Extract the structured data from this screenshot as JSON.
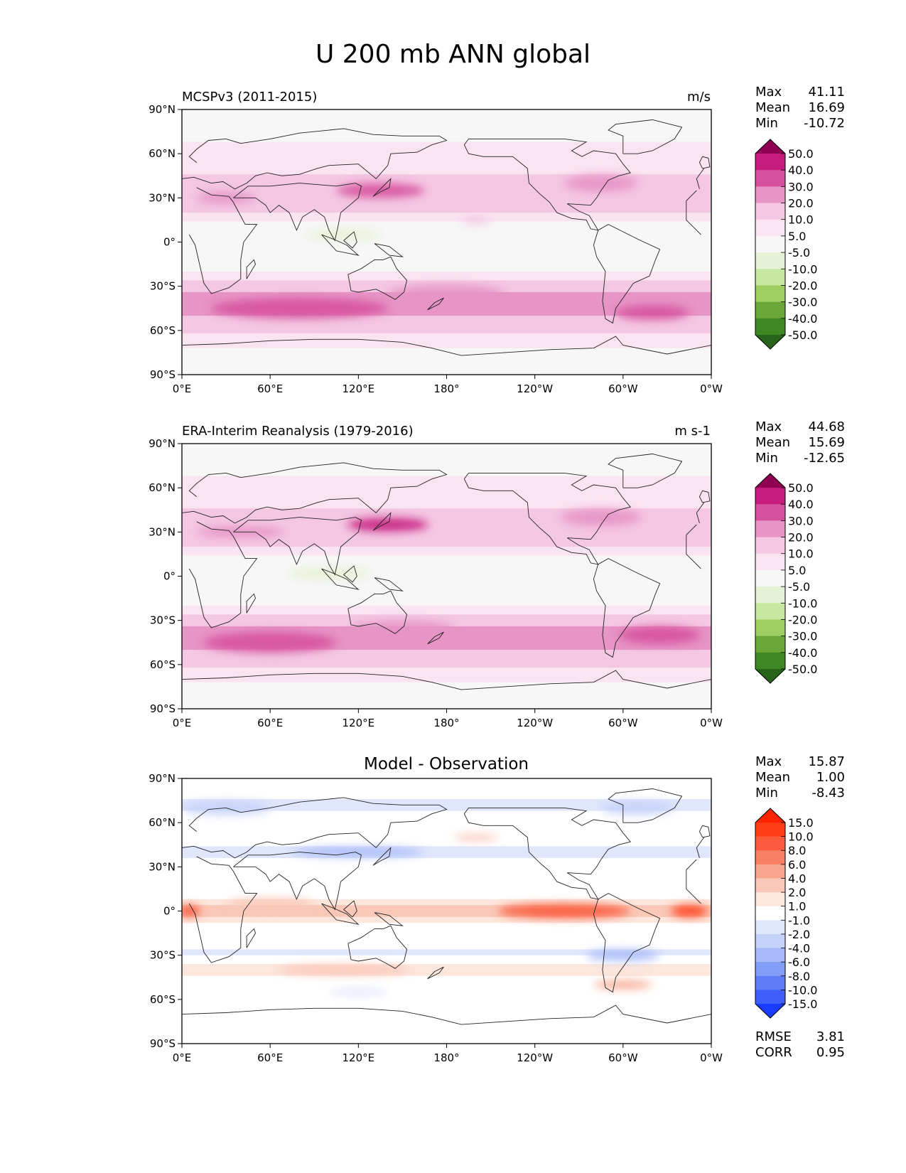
{
  "title": "U 200 mb ANN global",
  "chart_data": [
    {
      "type": "heatmap",
      "panel": "test",
      "title": "MCSPv3 (2011-2015)",
      "units": "m/s",
      "stats": {
        "max_label": "Max",
        "max": "41.11",
        "mean_label": "Mean",
        "mean": "16.69",
        "min_label": "Min",
        "min": "-10.72"
      },
      "colorbar": {
        "levels": [
          "50.0",
          "40.0",
          "30.0",
          "20.0",
          "10.0",
          "5.0",
          "-5.0",
          "-10.0",
          "-20.0",
          "-30.0",
          "-40.0",
          "-50.0"
        ],
        "colors": [
          "#8e0152",
          "#c51b7d",
          "#d6519d",
          "#e794c6",
          "#f4c7e2",
          "#fbe4f1",
          "#f7f7f7",
          "#e6f2d5",
          "#c7e8a0",
          "#9fcf63",
          "#6ba738",
          "#3f8722",
          "#276419"
        ]
      },
      "xticks": [
        "0°E",
        "60°E",
        "120°E",
        "180°",
        "120°W",
        "60°W",
        "0°W"
      ],
      "yticks": [
        "90°N",
        "60°N",
        "30°N",
        "0°",
        "30°S",
        "60°S",
        "90°S"
      ],
      "jets": [
        {
          "lat": 35,
          "lon": 135,
          "w": 60,
          "h": 10,
          "value": 35
        },
        {
          "lat": 30,
          "lon": 30,
          "w": 40,
          "h": 8,
          "value": 25
        },
        {
          "lat": 40,
          "lon": 285,
          "w": 50,
          "h": 12,
          "value": 22
        },
        {
          "lat": -45,
          "lon": 80,
          "w": 120,
          "h": 14,
          "value": 30
        },
        {
          "lat": -35,
          "lon": 180,
          "w": 80,
          "h": 12,
          "value": 28
        },
        {
          "lat": -48,
          "lon": 320,
          "w": 50,
          "h": 10,
          "value": 30
        },
        {
          "lat": 5,
          "lon": 110,
          "w": 50,
          "h": 8,
          "value": -7
        },
        {
          "lat": 15,
          "lon": 200,
          "w": 20,
          "h": 6,
          "value": 18
        }
      ]
    },
    {
      "type": "heatmap",
      "panel": "reference",
      "title": "ERA-Interim Reanalysis (1979-2016)",
      "units": "m s-1",
      "stats": {
        "max_label": "Max",
        "max": "44.68",
        "mean_label": "Mean",
        "mean": "15.69",
        "min_label": "Min",
        "min": "-12.65"
      },
      "colorbar": {
        "levels": [
          "50.0",
          "40.0",
          "30.0",
          "20.0",
          "10.0",
          "5.0",
          "-5.0",
          "-10.0",
          "-20.0",
          "-30.0",
          "-40.0",
          "-50.0"
        ],
        "colors": [
          "#8e0152",
          "#c51b7d",
          "#d6519d",
          "#e794c6",
          "#f4c7e2",
          "#fbe4f1",
          "#f7f7f7",
          "#e6f2d5",
          "#c7e8a0",
          "#9fcf63",
          "#6ba738",
          "#3f8722",
          "#276419"
        ]
      },
      "xticks": [
        "0°E",
        "60°E",
        "120°E",
        "180°",
        "120°W",
        "60°W",
        "0°W"
      ],
      "yticks": [
        "90°N",
        "60°N",
        "30°N",
        "0°",
        "30°S",
        "60°S",
        "90°S"
      ],
      "jets": [
        {
          "lat": 35,
          "lon": 140,
          "w": 55,
          "h": 9,
          "value": 40
        },
        {
          "lat": 30,
          "lon": 40,
          "w": 60,
          "h": 8,
          "value": 28
        },
        {
          "lat": 40,
          "lon": 285,
          "w": 55,
          "h": 12,
          "value": 22
        },
        {
          "lat": -45,
          "lon": 60,
          "w": 90,
          "h": 14,
          "value": 30
        },
        {
          "lat": -35,
          "lon": 150,
          "w": 70,
          "h": 10,
          "value": 28
        },
        {
          "lat": -40,
          "lon": 325,
          "w": 55,
          "h": 12,
          "value": 30
        },
        {
          "lat": 2,
          "lon": 100,
          "w": 55,
          "h": 9,
          "value": -10
        },
        {
          "lat": 2,
          "lon": 10,
          "w": 15,
          "h": 5,
          "value": -5
        }
      ]
    },
    {
      "type": "heatmap",
      "panel": "difference",
      "title": "Model - Observation",
      "units": "",
      "stats": {
        "max_label": "Max",
        "max": "15.87",
        "mean_label": "Mean",
        "mean": "1.00",
        "min_label": "Min",
        "min": "-8.43"
      },
      "metrics": {
        "rmse_label": "RMSE",
        "rmse": "3.81",
        "corr_label": "CORR",
        "corr": "0.95"
      },
      "colorbar": {
        "levels": [
          "15.0",
          "10.0",
          "8.0",
          "6.0",
          "4.0",
          "2.0",
          "1.0",
          "-1.0",
          "-2.0",
          "-4.0",
          "-6.0",
          "-8.0",
          "-10.0",
          "-15.0"
        ],
        "colors": [
          "#ff2200",
          "#ff3c14",
          "#fb5a3c",
          "#f88064",
          "#f7a68c",
          "#fac8b8",
          "#fde6dc",
          "#ffffff",
          "#e0e7fc",
          "#c5d2fa",
          "#a7b9f8",
          "#839ef6",
          "#5f7ef5",
          "#3d5ef8",
          "#1a3cff"
        ]
      },
      "xticks": [
        "0°E",
        "60°E",
        "120°E",
        "180°",
        "120°W",
        "60°W",
        "0°W"
      ],
      "yticks": [
        "90°N",
        "60°N",
        "30°N",
        "0°",
        "30°S",
        "60°S",
        "90°S"
      ],
      "jets": [
        {
          "lat": 0,
          "lon": 260,
          "w": 90,
          "h": 10,
          "value": 9
        },
        {
          "lat": 0,
          "lon": 345,
          "w": 25,
          "h": 8,
          "value": 10
        },
        {
          "lat": 0,
          "lon": 5,
          "w": 15,
          "h": 8,
          "value": 8
        },
        {
          "lat": 5,
          "lon": 60,
          "w": 60,
          "h": 8,
          "value": 3
        },
        {
          "lat": 40,
          "lon": 120,
          "w": 90,
          "h": 7,
          "value": -5
        },
        {
          "lat": 70,
          "lon": 30,
          "w": 60,
          "h": 10,
          "value": -3
        },
        {
          "lat": 70,
          "lon": 310,
          "w": 50,
          "h": 10,
          "value": -4
        },
        {
          "lat": -30,
          "lon": 300,
          "w": 50,
          "h": 8,
          "value": -6
        },
        {
          "lat": -40,
          "lon": 110,
          "w": 90,
          "h": 8,
          "value": 3
        },
        {
          "lat": -50,
          "lon": 300,
          "w": 40,
          "h": 6,
          "value": 4
        },
        {
          "lat": -55,
          "lon": 120,
          "w": 40,
          "h": 5,
          "value": -2
        },
        {
          "lat": 50,
          "lon": 200,
          "w": 30,
          "h": 5,
          "value": 3
        }
      ]
    }
  ]
}
